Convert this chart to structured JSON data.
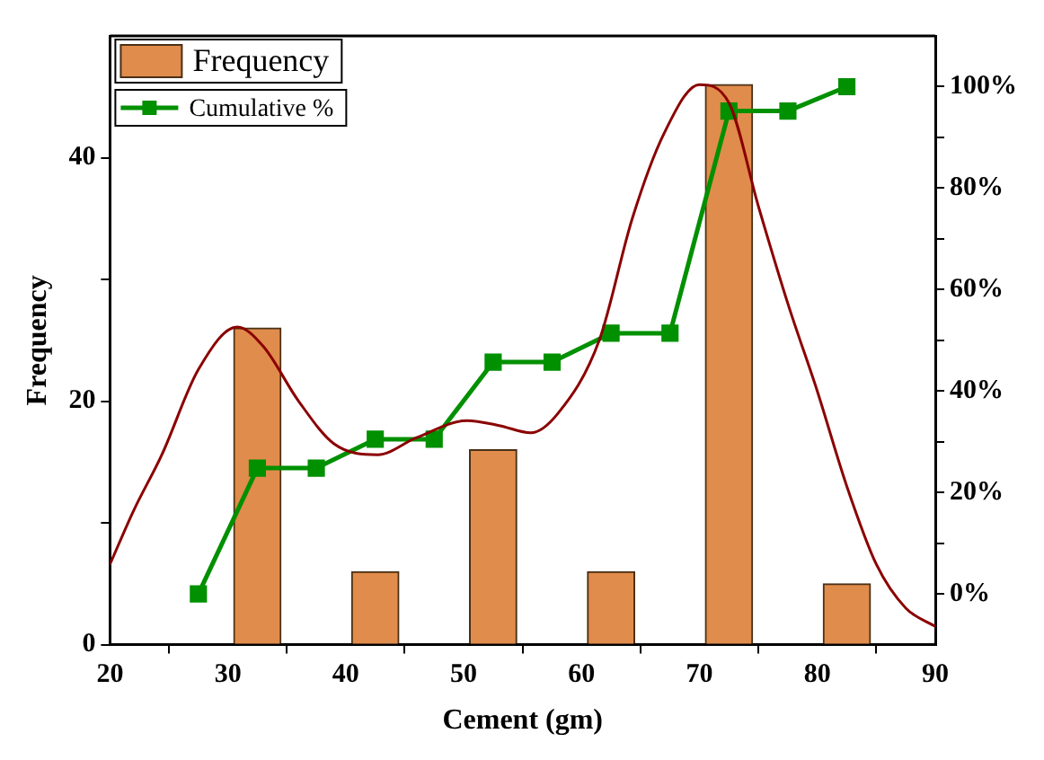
{
  "chart_data": {
    "type": "bar",
    "xlabel": "Cement (gm)",
    "ylabel": "Frequency",
    "legend": "top left",
    "grid": false,
    "xlim": [
      20,
      90
    ],
    "xticks": [
      20,
      30,
      40,
      50,
      60,
      70,
      80,
      90
    ],
    "ylim": [
      0,
      50
    ],
    "yticks": [
      0,
      {
        "value": 10,
        "label": null
      },
      20,
      {
        "value": 30,
        "label": null
      },
      40
    ],
    "y2lim": [
      -10,
      110
    ],
    "y2ticks": [
      {
        "value": 0,
        "label": "0%"
      },
      {
        "value": 10,
        "label": null
      },
      {
        "value": 20,
        "label": "20%"
      },
      {
        "value": 30,
        "label": null
      },
      {
        "value": 40,
        "label": "40%"
      },
      {
        "value": 50,
        "label": null
      },
      {
        "value": 60,
        "label": "60%"
      },
      {
        "value": 70,
        "label": null
      },
      {
        "value": 80,
        "label": "80%"
      },
      {
        "value": 90,
        "label": null
      },
      {
        "value": 100,
        "label": "100%"
      }
    ],
    "series": [
      {
        "name": "Frequency",
        "color": "#e08c4c",
        "x": [
          32.5,
          42.5,
          52.5,
          62.5,
          72.5,
          82.5
        ],
        "values": [
          26,
          6,
          16,
          6,
          46,
          5
        ]
      },
      {
        "type": "line",
        "color": "#8b0000",
        "marker": "none",
        "x": [
          20,
          22,
          24.4,
          27.5,
          30.8,
          33,
          36,
          39,
          42.7,
          46,
          50.3,
          53,
          55.7,
          58,
          61.5,
          64.3,
          67,
          70,
          72.5,
          75,
          77.5,
          80,
          82.5,
          85,
          87.5,
          90
        ],
        "values": [
          6.6,
          11,
          15.6,
          22.6,
          26.1,
          24.5,
          20,
          16.5,
          15.6,
          17,
          18.4,
          18,
          17.4,
          19,
          25,
          35,
          42,
          46,
          44.5,
          36,
          28,
          20.8,
          13,
          6.6,
          3,
          1.5
        ]
      },
      {
        "name": "Cumulative %",
        "type": "line",
        "axis": "y2",
        "color": "#009000",
        "marker": "square",
        "x": [
          27.5,
          32.5,
          37.5,
          42.5,
          47.5,
          52.5,
          57.5,
          62.5,
          67.5,
          72.5,
          77.5,
          82.5
        ],
        "values": [
          0,
          24.8,
          24.8,
          30.5,
          30.5,
          45.7,
          45.7,
          51.4,
          51.4,
          95.2,
          95.2,
          100
        ]
      }
    ]
  }
}
